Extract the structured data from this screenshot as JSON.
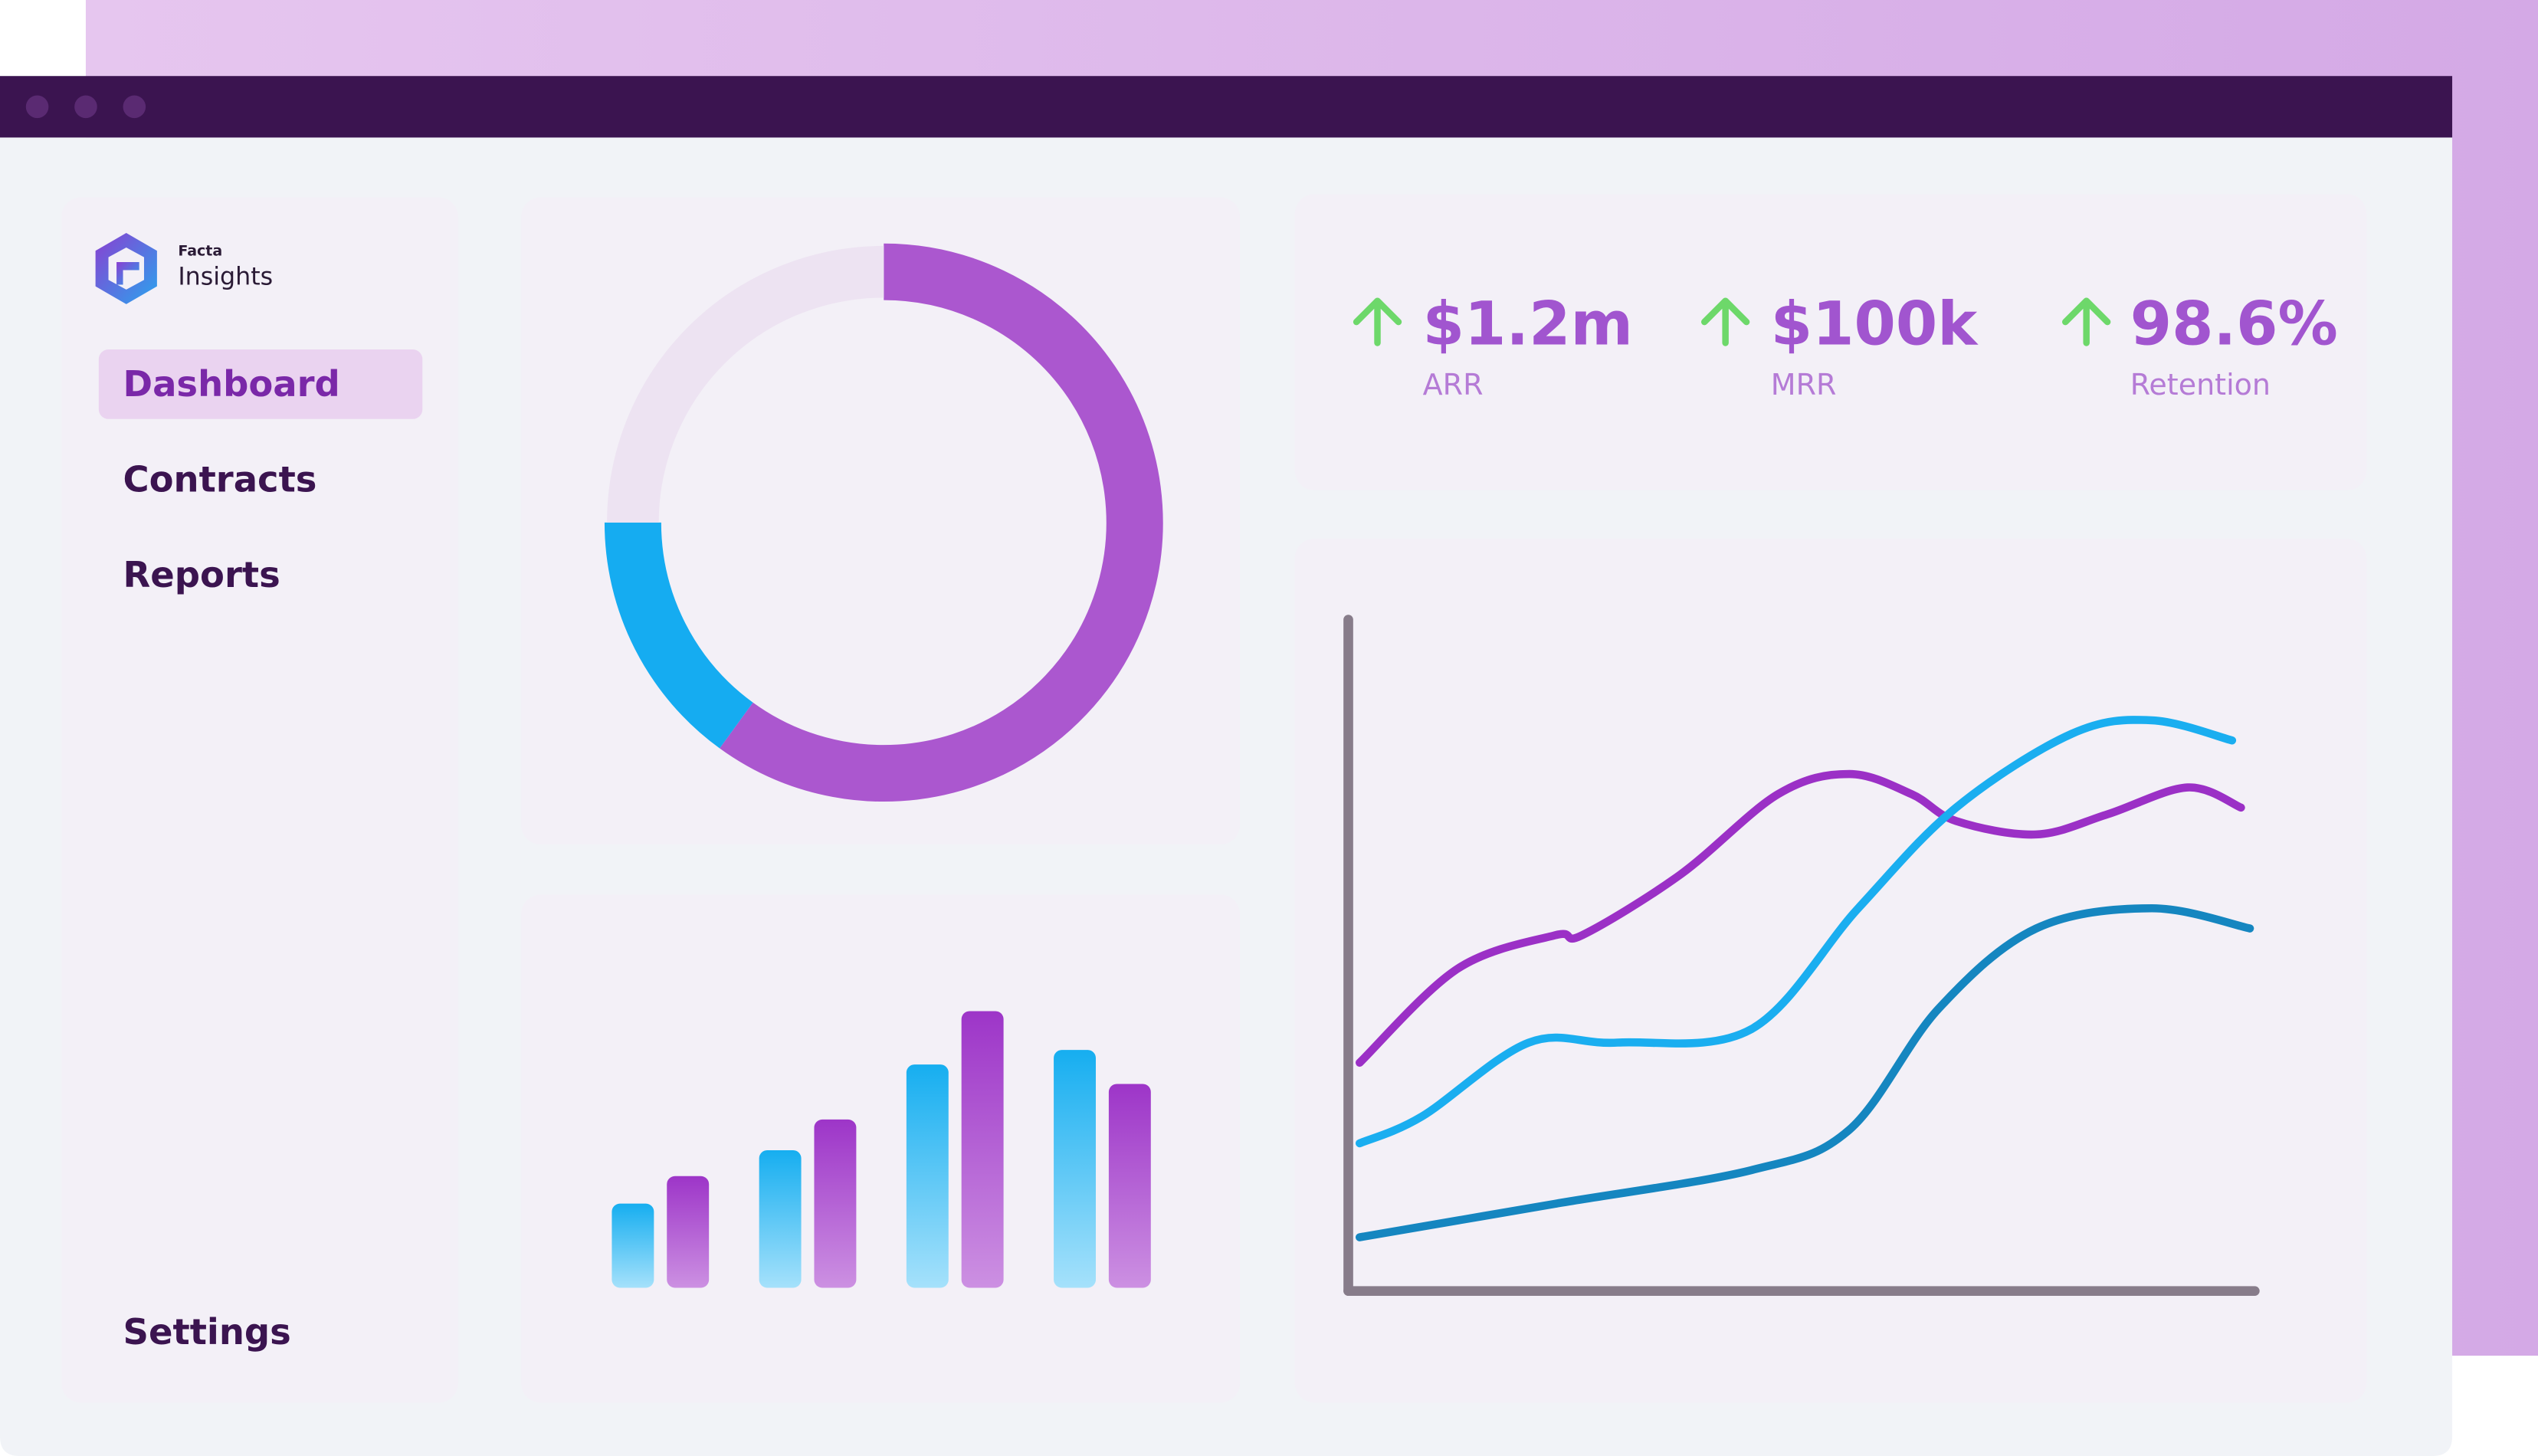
{
  "logo": {
    "small": "Facta",
    "name": "Insights"
  },
  "nav": [
    "Dashboard",
    "Contracts",
    "Reports"
  ],
  "settings": "Settings",
  "kpis": [
    {
      "value": "$1.2m",
      "label": "ARR"
    },
    {
      "value": "$100k",
      "label": "MRR"
    },
    {
      "value": "98.6%",
      "label": "Retention"
    }
  ],
  "donut": {
    "values": [
      60,
      15,
      25
    ],
    "colors": [
      "#ab57cf",
      "#15acf1",
      "#ede3f2"
    ]
  },
  "bars": {
    "ylim": [
      0,
      180
    ],
    "colors": [
      "#16aef0",
      "#9d35c8"
    ],
    "groups": [
      [
        52,
        69
      ],
      [
        85,
        104
      ],
      [
        138,
        171
      ],
      [
        147,
        126
      ]
    ]
  },
  "lines": {
    "xlim": [
      0,
      100
    ],
    "ylim": [
      0,
      100
    ],
    "series": [
      {
        "color": "#9b30c6",
        "x": [
          0,
          11,
          22,
          25,
          36,
          47,
          55,
          62,
          67,
          76,
          84,
          93,
          99
        ],
        "y": [
          34,
          48,
          53,
          53,
          62,
          74,
          77,
          74,
          70,
          68,
          71,
          75,
          72
        ]
      },
      {
        "color": "#1aaef0",
        "x": [
          0,
          7,
          19,
          29,
          44,
          56,
          67,
          80,
          89,
          98
        ],
        "y": [
          22,
          26,
          37,
          37,
          39,
          57,
          72,
          83,
          85,
          82
        ]
      },
      {
        "color": "#1586c0",
        "x": [
          0,
          22,
          44,
          55,
          65,
          76,
          89,
          100
        ],
        "y": [
          8,
          13,
          18,
          24,
          42,
          54,
          57,
          54
        ]
      }
    ]
  }
}
